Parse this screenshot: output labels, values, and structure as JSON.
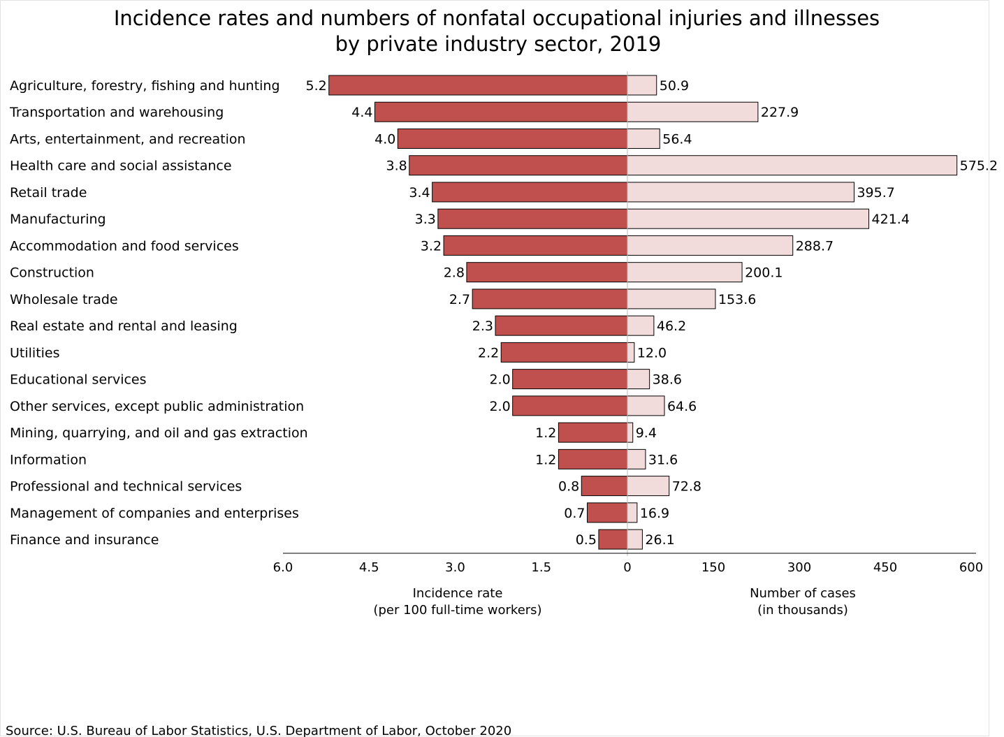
{
  "chart_data": {
    "type": "bar",
    "orientation": "horizontal",
    "layout": "diverging (back-to-back)",
    "title_line1": "Incidence rates and numbers of nonfatal occupational injuries and illnesses",
    "title_line2": "by private industry sector, 2019",
    "categories": [
      "Agriculture, forestry, fishing and hunting",
      "Transportation and warehousing",
      "Arts, entertainment, and recreation",
      "Health care and social assistance",
      "Retail trade",
      "Manufacturing",
      "Accommodation and food services",
      "Construction",
      "Wholesale trade",
      "Real estate and rental and leasing",
      "Utilities",
      "Educational services",
      "Other services, except public administration",
      "Mining, quarrying, and oil and gas extraction",
      "Information",
      "Professional and technical services",
      "Management of companies and enterprises",
      "Finance and insurance"
    ],
    "series": [
      {
        "values": [
          5.2,
          4.4,
          4.0,
          3.8,
          3.4,
          3.3,
          3.2,
          2.8,
          2.7,
          2.3,
          2.2,
          2.0,
          2.0,
          1.2,
          1.2,
          0.8,
          0.7,
          0.5
        ],
        "labels": [
          "5.2",
          "4.4",
          "4.0",
          "3.8",
          "3.4",
          "3.3",
          "3.2",
          "2.8",
          "2.7",
          "2.3",
          "2.2",
          "2.0",
          "2.0",
          "1.2",
          "1.2",
          "0.8",
          "0.7",
          "0.5"
        ],
        "color": "#c0504d",
        "side": "left"
      },
      {
        "values": [
          50.9,
          227.9,
          56.4,
          575.2,
          395.7,
          421.4,
          288.7,
          200.1,
          153.6,
          46.2,
          12.0,
          38.6,
          64.6,
          9.4,
          31.6,
          72.8,
          16.9,
          26.1
        ],
        "labels": [
          "50.9",
          "227.9",
          "56.4",
          "575.2",
          "395.7",
          "421.4",
          "288.7",
          "200.1",
          "153.6",
          "46.2",
          "12.0",
          "38.6",
          "64.6",
          "9.4",
          "31.6",
          "72.8",
          "16.9",
          "26.1"
        ],
        "color": "#f2dcdb",
        "side": "right"
      }
    ],
    "left_axis": {
      "xlabel_line1": "Incidence rate",
      "xlabel_line2": "(per 100 full-time workers)",
      "xlim": [
        6.0,
        0
      ],
      "ticks": [
        "6.0",
        "4.5",
        "3.0",
        "1.5",
        "0"
      ]
    },
    "right_axis": {
      "xlabel_line1": "Number of cases",
      "xlabel_line2": "(in thousands)",
      "xlim": [
        0,
        600
      ],
      "ticks": [
        "150",
        "300",
        "450",
        "600"
      ]
    },
    "grid": false,
    "legend": "none",
    "source": "Source:  U.S. Bureau of Labor Statistics, U.S. Department of Labor, October 2020"
  }
}
